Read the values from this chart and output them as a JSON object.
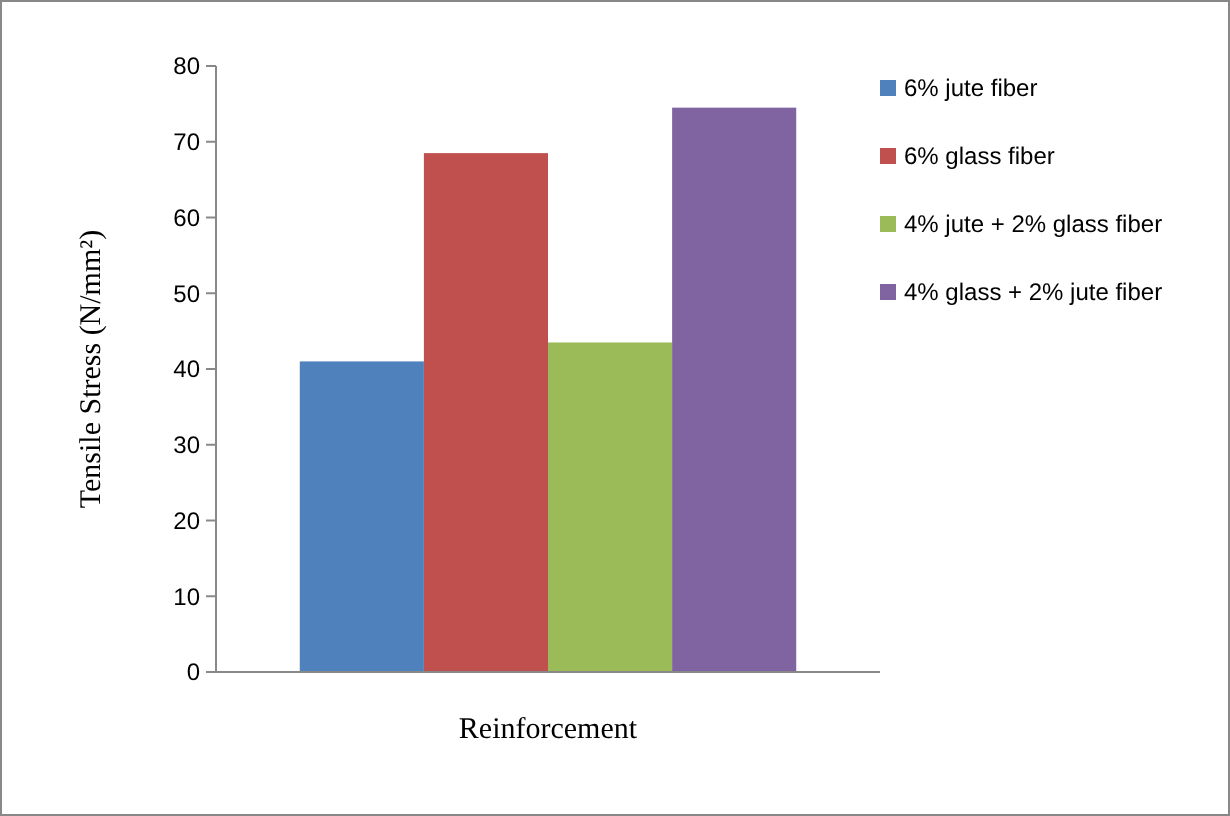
{
  "chart_data": {
    "type": "bar",
    "xlabel": "Reinforcement",
    "ylabel": "Tensile Stress (N/mm²)",
    "categories": [
      null
    ],
    "series": [
      {
        "name": "6% jute fiber",
        "color": "#4f81bd",
        "values": [
          41
        ]
      },
      {
        "name": "6% glass fiber",
        "color": "#c0504d",
        "values": [
          68.5
        ]
      },
      {
        "name": "4% jute + 2% glass fiber",
        "color": "#9bbb59",
        "values": [
          43.5
        ]
      },
      {
        "name": "4% glass + 2% jute fiber",
        "color": "#8064a2",
        "values": [
          74.5
        ]
      }
    ],
    "ylim": [
      0,
      80
    ],
    "yticks": [
      0,
      10,
      20,
      30,
      40,
      50,
      60,
      70,
      80
    ],
    "grid": false,
    "legend": "right"
  }
}
